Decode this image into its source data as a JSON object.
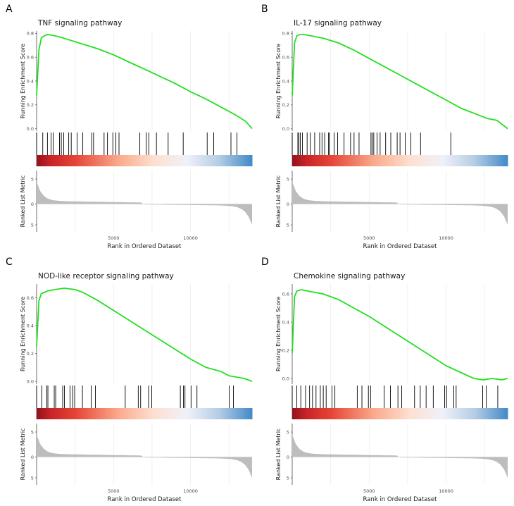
{
  "chart_data": [
    {
      "type": "line",
      "panel_label": "A",
      "title": "TNF signaling pathway",
      "ylabel_top": "Running Enrichment Score",
      "ylabel_bottom": "Ranked List Metric",
      "xlabel": "Rank in Ordered Dataset",
      "xlim": [
        0,
        14000
      ],
      "ylim": [
        -0.02,
        0.82
      ],
      "y_ticks": [
        "0.0",
        "0.2",
        "0.4",
        "0.6",
        "0.8"
      ],
      "x_ticks": [
        "5000",
        "10000"
      ],
      "metric_ticks": [
        "5",
        "0",
        "5"
      ],
      "running_es": {
        "x": [
          0,
          150,
          300,
          500,
          700,
          1000,
          1500,
          2000,
          3000,
          4000,
          5000,
          6000,
          7000,
          8000,
          9000,
          10000,
          11000,
          12000,
          13000,
          13600,
          14000
        ],
        "y": [
          0.28,
          0.66,
          0.76,
          0.78,
          0.79,
          0.785,
          0.77,
          0.75,
          0.71,
          0.67,
          0.62,
          0.56,
          0.5,
          0.44,
          0.38,
          0.31,
          0.25,
          0.18,
          0.11,
          0.06,
          0.0
        ]
      },
      "hits_description": "gene set hits concentrated at top of ranked list"
    },
    {
      "type": "line",
      "panel_label": "B",
      "title": "IL-17 signaling pathway",
      "ylabel_top": "Running Enrichment Score",
      "ylabel_bottom": "Ranked List Metric",
      "xlabel": "Rank in Ordered Dataset",
      "xlim": [
        0,
        14000
      ],
      "ylim": [
        -0.02,
        0.82
      ],
      "y_ticks": [
        "0.0",
        "0.2",
        "0.4",
        "0.6",
        "0.8"
      ],
      "x_ticks": [
        "5000",
        "10000"
      ],
      "metric_ticks": [
        "5",
        "0",
        "5"
      ],
      "running_es": {
        "x": [
          0,
          150,
          300,
          500,
          800,
          1200,
          1600,
          2000,
          3000,
          4000,
          5000,
          6000,
          7000,
          8000,
          9000,
          10000,
          11000,
          12000,
          12700,
          13300,
          14000
        ],
        "y": [
          0.28,
          0.72,
          0.78,
          0.79,
          0.79,
          0.78,
          0.77,
          0.76,
          0.72,
          0.66,
          0.59,
          0.52,
          0.45,
          0.38,
          0.31,
          0.24,
          0.17,
          0.12,
          0.085,
          0.07,
          0.0
        ]
      },
      "hits_description": "gene set hits concentrated at top of ranked list"
    },
    {
      "type": "line",
      "panel_label": "C",
      "title": "NOD-like receptor signaling pathway",
      "ylabel_top": "Running Enrichment Score",
      "ylabel_bottom": "Ranked List Metric",
      "xlabel": "Rank in Ordered Dataset",
      "xlim": [
        0,
        14000
      ],
      "ylim": [
        -0.02,
        0.7
      ],
      "y_ticks": [
        "0.0",
        "0.2",
        "0.4",
        "0.6"
      ],
      "x_ticks": [
        "5000",
        "10000"
      ],
      "metric_ticks": [
        "5",
        "0",
        "5"
      ],
      "running_es": {
        "x": [
          0,
          150,
          300,
          700,
          1200,
          1800,
          2500,
          3000,
          4000,
          5000,
          6000,
          7000,
          8000,
          9000,
          10000,
          11000,
          12000,
          12500,
          13000,
          13500,
          14000
        ],
        "y": [
          0.25,
          0.58,
          0.63,
          0.65,
          0.66,
          0.67,
          0.66,
          0.64,
          0.58,
          0.51,
          0.44,
          0.37,
          0.3,
          0.23,
          0.16,
          0.1,
          0.07,
          0.04,
          0.03,
          0.02,
          0.0
        ]
      },
      "hits_description": "gene set hits spread across ranked list with enrichment at top"
    },
    {
      "type": "line",
      "panel_label": "D",
      "title": "Chemokine signaling pathway",
      "ylabel_top": "Running Enrichment Score",
      "ylabel_bottom": "Ranked List Metric",
      "xlabel": "Rank in Ordered Dataset",
      "xlim": [
        0,
        14000
      ],
      "ylim": [
        -0.04,
        0.67
      ],
      "y_ticks": [
        "0.0",
        "0.2",
        "0.4",
        "0.6"
      ],
      "x_ticks": [
        "5000",
        "10000"
      ],
      "metric_ticks": [
        "5",
        "0",
        "5"
      ],
      "running_es": {
        "x": [
          0,
          150,
          300,
          600,
          1000,
          1500,
          2000,
          3000,
          4000,
          5000,
          6000,
          7000,
          8000,
          9000,
          10000,
          11000,
          11800,
          12400,
          13000,
          13600,
          14000
        ],
        "y": [
          0.18,
          0.58,
          0.62,
          0.63,
          0.62,
          0.61,
          0.6,
          0.56,
          0.5,
          0.44,
          0.37,
          0.3,
          0.23,
          0.16,
          0.09,
          0.04,
          0.0,
          -0.01,
          0.0,
          -0.01,
          0.0
        ]
      },
      "hits_description": "gene set hits spread across ranked list with enrichment at top"
    }
  ]
}
